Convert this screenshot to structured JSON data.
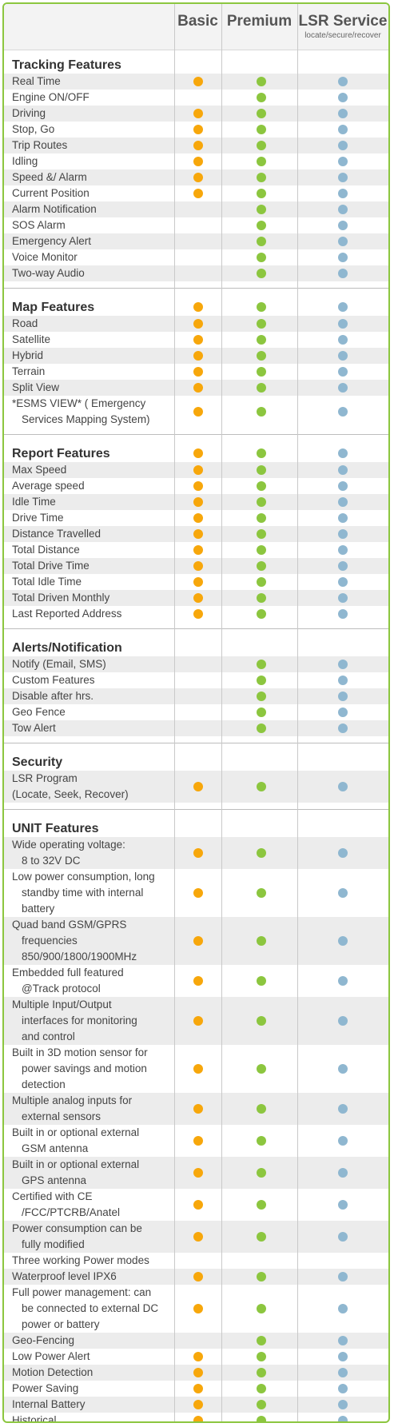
{
  "header": {
    "col_basic": "Basic",
    "col_premium": "Premium",
    "col_lsr": "LSR Service",
    "col_lsr_sub": "locate/secure/recover"
  },
  "colors": {
    "basic": "#f7a70b",
    "premium": "#8cc63f",
    "lsr": "#8fb7d0",
    "frame": "#8cc63f"
  },
  "sections": [
    {
      "title": "Tracking Features",
      "title_dots": [
        false,
        false,
        false
      ],
      "rows": [
        {
          "label": [
            "Real Time"
          ],
          "dots": [
            true,
            true,
            true
          ]
        },
        {
          "label": [
            "Engine ON/OFF"
          ],
          "dots": [
            false,
            true,
            true
          ]
        },
        {
          "label": [
            "Driving"
          ],
          "dots": [
            true,
            true,
            true
          ]
        },
        {
          "label": [
            "Stop, Go"
          ],
          "dots": [
            true,
            true,
            true
          ]
        },
        {
          "label": [
            "Trip Routes"
          ],
          "dots": [
            true,
            true,
            true
          ]
        },
        {
          "label": [
            "Idling"
          ],
          "dots": [
            true,
            true,
            true
          ]
        },
        {
          "label": [
            "Speed &/ Alarm"
          ],
          "dots": [
            true,
            true,
            true
          ]
        },
        {
          "label": [
            "Current Position"
          ],
          "dots": [
            true,
            true,
            true
          ]
        },
        {
          "label": [
            "Alarm Notification"
          ],
          "dots": [
            false,
            true,
            true
          ]
        },
        {
          "label": [
            "SOS Alarm"
          ],
          "dots": [
            false,
            true,
            true
          ]
        },
        {
          "label": [
            "Emergency Alert"
          ],
          "dots": [
            false,
            true,
            true
          ]
        },
        {
          "label": [
            "Voice Monitor"
          ],
          "dots": [
            false,
            true,
            true
          ]
        },
        {
          "label": [
            "Two-way Audio"
          ],
          "dots": [
            false,
            true,
            true
          ]
        }
      ]
    },
    {
      "title": "Map Features",
      "title_dots": [
        true,
        true,
        true
      ],
      "rows": [
        {
          "label": [
            "Road"
          ],
          "dots": [
            true,
            true,
            true
          ]
        },
        {
          "label": [
            "Satellite"
          ],
          "dots": [
            true,
            true,
            true
          ]
        },
        {
          "label": [
            "Hybrid"
          ],
          "dots": [
            true,
            true,
            true
          ]
        },
        {
          "label": [
            "Terrain"
          ],
          "dots": [
            true,
            true,
            true
          ]
        },
        {
          "label": [
            " Split View"
          ],
          "dots": [
            true,
            true,
            true
          ]
        },
        {
          "label": [
            "*ESMS VIEW* ( Emergency",
            "Services Mapping System)"
          ],
          "dots": [
            true,
            true,
            true
          ]
        }
      ]
    },
    {
      "title": "Report Features",
      "title_dots": [
        true,
        true,
        true
      ],
      "rows": [
        {
          "label": [
            "Max Speed"
          ],
          "dots": [
            true,
            true,
            true
          ]
        },
        {
          "label": [
            "Average speed"
          ],
          "dots": [
            true,
            true,
            true
          ]
        },
        {
          "label": [
            "Idle Time"
          ],
          "dots": [
            true,
            true,
            true
          ]
        },
        {
          "label": [
            "Drive Time"
          ],
          "dots": [
            true,
            true,
            true
          ]
        },
        {
          "label": [
            "Distance Travelled"
          ],
          "dots": [
            true,
            true,
            true
          ]
        },
        {
          "label": [
            "Total Distance"
          ],
          "dots": [
            true,
            true,
            true
          ]
        },
        {
          "label": [
            "Total Drive Time"
          ],
          "dots": [
            true,
            true,
            true
          ]
        },
        {
          "label": [
            "Total Idle Time"
          ],
          "dots": [
            true,
            true,
            true
          ]
        },
        {
          "label": [
            "Total Driven Monthly"
          ],
          "dots": [
            true,
            true,
            true
          ]
        },
        {
          "label": [
            "Last Reported Address"
          ],
          "dots": [
            true,
            true,
            true
          ]
        }
      ]
    },
    {
      "title": "Alerts/Notification",
      "title_dots": [
        false,
        false,
        false
      ],
      "rows": [
        {
          "label": [
            "Notify (Email, SMS)"
          ],
          "dots": [
            false,
            true,
            true
          ]
        },
        {
          "label": [
            "Custom Features"
          ],
          "dots": [
            false,
            true,
            true
          ]
        },
        {
          "label": [
            "Disable after hrs."
          ],
          "dots": [
            false,
            true,
            true
          ]
        },
        {
          "label": [
            "Geo Fence"
          ],
          "dots": [
            false,
            true,
            true
          ]
        },
        {
          "label": [
            "Tow Alert"
          ],
          "dots": [
            false,
            true,
            true
          ]
        }
      ]
    },
    {
      "title": "Security",
      "title_dots": [
        false,
        false,
        false
      ],
      "rows": [
        {
          "label": [
            "LSR Program",
            "(Locate, Seek, Recover)"
          ],
          "dots": [
            true,
            true,
            true
          ],
          "nocont": true
        }
      ]
    },
    {
      "title": "UNIT Features",
      "title_dots": [
        false,
        false,
        false
      ],
      "rows": [
        {
          "label": [
            "Wide operating voltage:",
            "8 to 32V DC"
          ],
          "dots": [
            true,
            true,
            true
          ]
        },
        {
          "label": [
            "Low power consumption, long",
            "standby time with internal",
            "battery"
          ],
          "dots": [
            true,
            true,
            true
          ]
        },
        {
          "label": [
            "Quad band GSM/GPRS",
            "frequencies",
            "850/900/1800/1900MHz"
          ],
          "dots": [
            true,
            true,
            true
          ]
        },
        {
          "label": [
            "Embedded full featured",
            "@Track protocol"
          ],
          "dots": [
            true,
            true,
            true
          ]
        },
        {
          "label": [
            "Multiple Input/Output",
            "interfaces for monitoring",
            "and control"
          ],
          "dots": [
            true,
            true,
            true
          ]
        },
        {
          "label": [
            "Built in 3D motion sensor for",
            "power savings and motion",
            "detection"
          ],
          "dots": [
            true,
            true,
            true
          ]
        },
        {
          "label": [
            "Multiple analog inputs for",
            "external sensors"
          ],
          "dots": [
            true,
            true,
            true
          ]
        },
        {
          "label": [
            "Built in or optional external",
            "GSM antenna"
          ],
          "dots": [
            true,
            true,
            true
          ]
        },
        {
          "label": [
            "Built in or optional external",
            "GPS antenna"
          ],
          "dots": [
            true,
            true,
            true
          ]
        },
        {
          "label": [
            "Certified with CE",
            "/FCC/PTCRB/Anatel"
          ],
          "dots": [
            true,
            true,
            true
          ]
        },
        {
          "label": [
            "Power consumption can be",
            "fully modified"
          ],
          "dots": [
            true,
            true,
            true
          ]
        },
        {
          "label": [
            "Three working Power modes"
          ],
          "dots": [
            false,
            false,
            false
          ]
        },
        {
          "label": [
            "Waterproof level IPX6"
          ],
          "dots": [
            true,
            true,
            true
          ]
        },
        {
          "label": [
            "Full power management: can",
            "be connected to external DC",
            "power or battery"
          ],
          "dots": [
            true,
            true,
            true
          ]
        },
        {
          "label": [
            "Geo-Fencing"
          ],
          "dots": [
            false,
            true,
            true
          ]
        },
        {
          "label": [
            "Low Power Alert"
          ],
          "dots": [
            true,
            true,
            true
          ]
        },
        {
          "label": [
            "Motion Detection"
          ],
          "dots": [
            true,
            true,
            true
          ]
        },
        {
          "label": [
            "Power Saving"
          ],
          "dots": [
            true,
            true,
            true
          ]
        },
        {
          "label": [
            "Internal Battery"
          ],
          "dots": [
            true,
            true,
            true
          ]
        },
        {
          "label": [
            "Historical"
          ],
          "dots": [
            true,
            true,
            true
          ]
        }
      ]
    }
  ]
}
